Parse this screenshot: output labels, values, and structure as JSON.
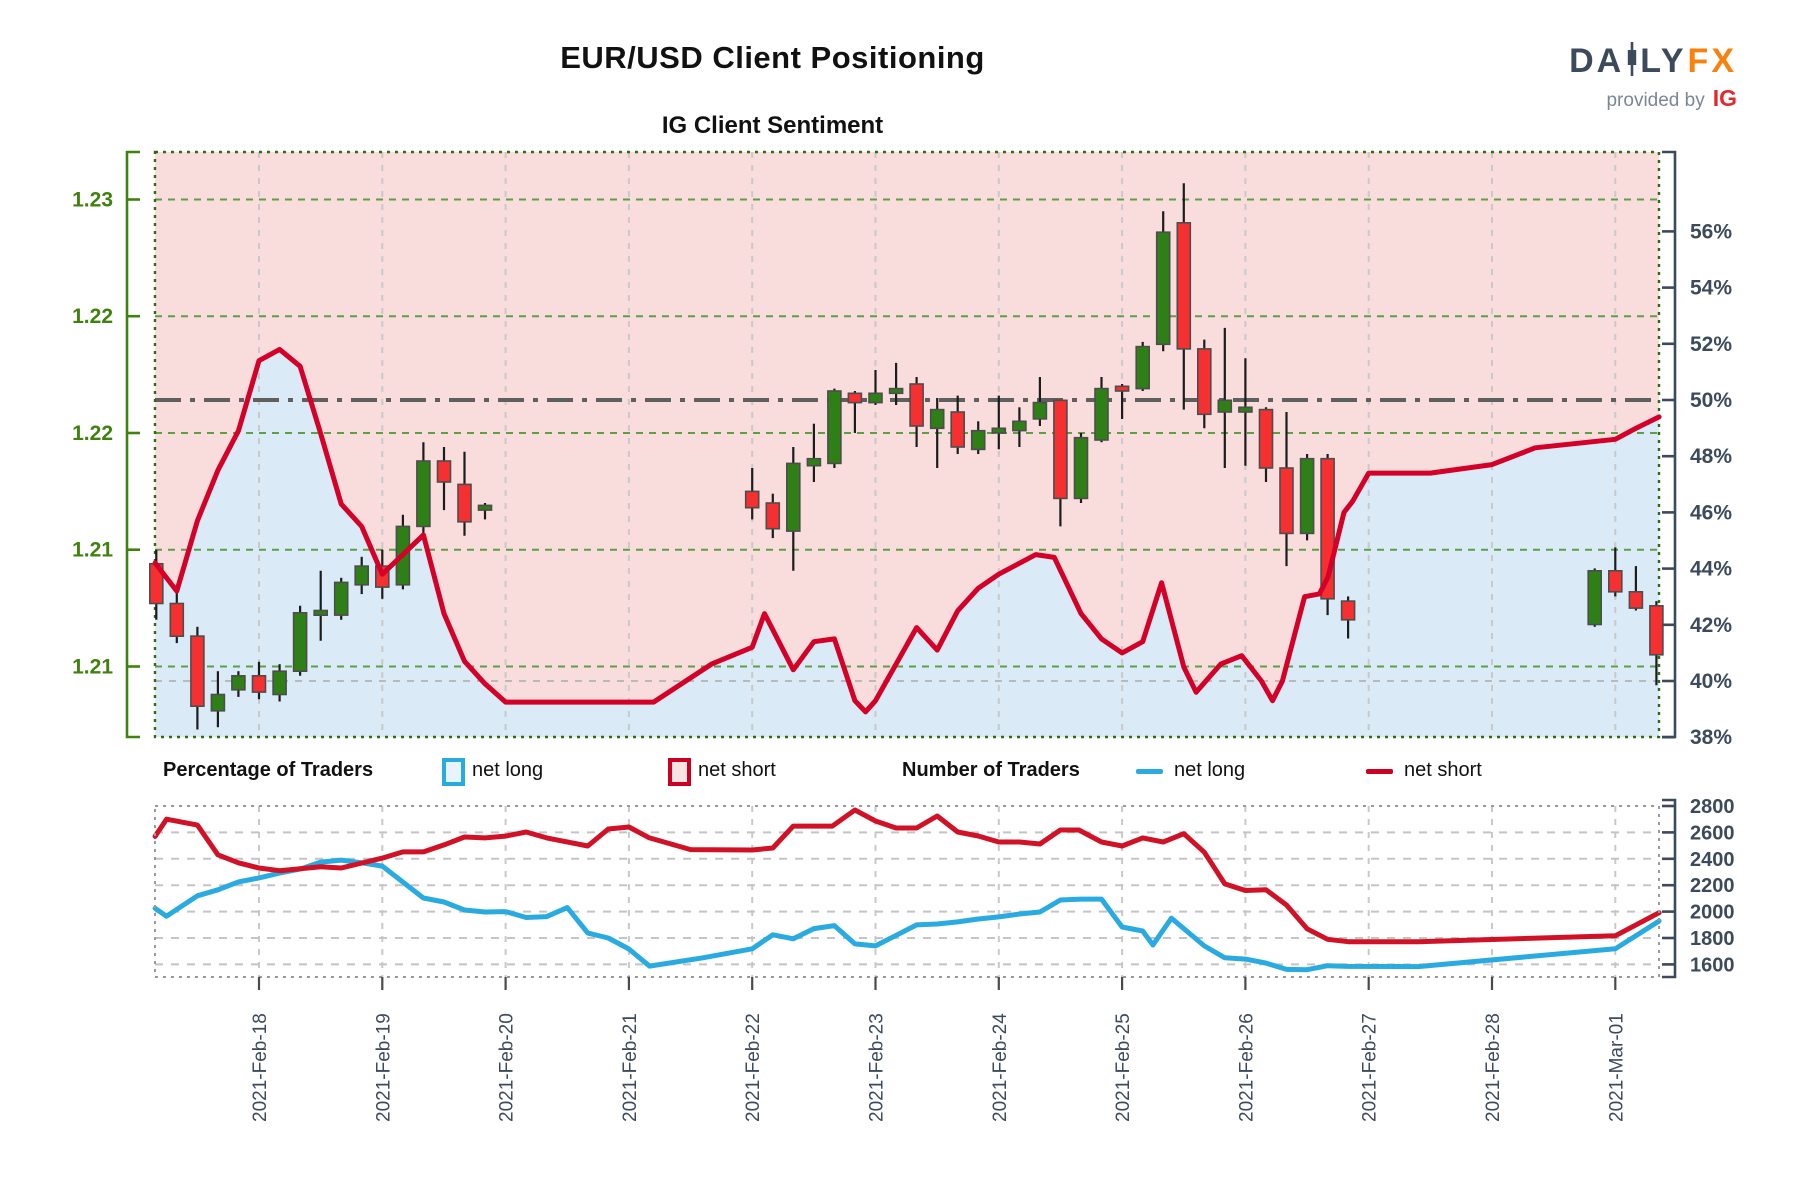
{
  "header": {
    "title": "EUR/USD Client Positioning",
    "subtitle": "IG Client Sentiment"
  },
  "logo": {
    "brand_prefix": "DA",
    "brand_mid": "LY",
    "brand_suffix": "FX",
    "tagline": "provided by",
    "tagline_brand": "IG",
    "brand_color": "#3d4a5c",
    "fx_color": "#f8820d",
    "ig_color": "#e02a2e"
  },
  "legend": {
    "pct_title": "Percentage of Traders",
    "num_title": "Number of Traders",
    "net_long": "net long",
    "net_short": "net short",
    "long_color": "#29abe2",
    "short_color": "#cc0022"
  },
  "colors": {
    "price_axis_green": "#41810f",
    "grid_green": "#5f9e47",
    "border_green": "#2f6b10",
    "slate": "#3d4a5c",
    "sentiment_red": "#d40028",
    "pink_fill": "#f9dcdc",
    "blue_fill": "#daeaf6",
    "candle_up": "#2e8016",
    "candle_down": "#f63030",
    "gray_grid": "#c9c9c9",
    "fifty_line": "#5f5f5f",
    "forty_line": "#b9b9b9",
    "bot_long": "#29abe2",
    "bot_short": "#d11226"
  },
  "x_axis": {
    "tick_labels": [
      "2021-Feb-18",
      "2021-Feb-19",
      "2021-Feb-20",
      "2021-Feb-21",
      "2021-Feb-22",
      "2021-Feb-23",
      "2021-Feb-24",
      "2021-Feb-25",
      "2021-Feb-26",
      "2021-Feb-27",
      "2021-Feb-28",
      "2021-Mar-01"
    ],
    "tick_t": [
      0,
      1,
      2,
      3,
      4,
      5,
      6,
      7,
      8,
      9,
      10,
      11
    ]
  },
  "chart_data": [
    {
      "type": "candlestick+line",
      "title": "IG Client Sentiment price panel",
      "price_axis": {
        "ticks": [
          1.23,
          1.225,
          1.22,
          1.215,
          1.21
        ],
        "tick_labels": [
          "1.23",
          "1.22",
          "1.22",
          "1.21",
          "1.21"
        ]
      },
      "pct_axis": {
        "ticks": [
          56,
          54,
          52,
          50,
          48,
          46,
          44,
          42,
          40,
          38
        ],
        "suffix": "%"
      },
      "reference_lines": {
        "fifty_pct": 50,
        "forty_pct": 40
      },
      "candles_format": [
        "t_days_from_2021-02-18",
        "open",
        "high",
        "low",
        "close"
      ],
      "candles": [
        [
          -0.833,
          1.2144,
          1.215,
          1.212,
          1.2127
        ],
        [
          -0.667,
          1.2127,
          1.2133,
          1.211,
          1.2113
        ],
        [
          -0.5,
          1.2113,
          1.2117,
          1.2073,
          1.2083
        ],
        [
          -0.333,
          1.2081,
          1.2098,
          1.2074,
          1.2088
        ],
        [
          -0.167,
          1.209,
          1.2098,
          1.2087,
          1.2096
        ],
        [
          0,
          1.2096,
          1.2102,
          1.2086,
          1.2089
        ],
        [
          0.167,
          1.2088,
          1.2101,
          1.2085,
          1.2098
        ],
        [
          0.333,
          1.2098,
          1.2126,
          1.2096,
          1.2123
        ],
        [
          0.5,
          1.2122,
          1.2141,
          1.2111,
          1.2124
        ],
        [
          0.667,
          1.2122,
          1.2138,
          1.212,
          1.2136
        ],
        [
          0.833,
          1.2135,
          1.2147,
          1.2131,
          1.2143
        ],
        [
          1.0,
          1.2143,
          1.215,
          1.2129,
          1.2134
        ],
        [
          1.167,
          1.2135,
          1.2165,
          1.2133,
          1.216
        ],
        [
          1.333,
          1.216,
          1.2196,
          1.2156,
          1.2188
        ],
        [
          1.5,
          1.2188,
          1.2194,
          1.2167,
          1.2179
        ],
        [
          1.667,
          1.2178,
          1.2192,
          1.2156,
          1.2162
        ],
        [
          1.833,
          1.2167,
          1.217,
          1.2163,
          1.2169
        ],
        [
          4.0,
          1.2175,
          1.2185,
          1.2163,
          1.2168
        ],
        [
          4.167,
          1.217,
          1.2174,
          1.2155,
          1.2159
        ],
        [
          4.333,
          1.2158,
          1.2194,
          1.2141,
          1.2187
        ],
        [
          4.5,
          1.2186,
          1.2204,
          1.2179,
          1.2189
        ],
        [
          4.667,
          1.2187,
          1.2219,
          1.2185,
          1.2218
        ],
        [
          4.833,
          1.2217,
          1.2218,
          1.22,
          1.2213
        ],
        [
          5.0,
          1.2213,
          1.2227,
          1.2212,
          1.2217
        ],
        [
          5.167,
          1.2217,
          1.223,
          1.2212,
          1.2219
        ],
        [
          5.333,
          1.2221,
          1.2224,
          1.2194,
          1.2203
        ],
        [
          5.5,
          1.2202,
          1.2215,
          1.2185,
          1.221
        ],
        [
          5.667,
          1.2209,
          1.2216,
          1.2191,
          1.2194
        ],
        [
          5.833,
          1.2193,
          1.2205,
          1.2191,
          1.2201
        ],
        [
          6.0,
          1.22,
          1.2216,
          1.2193,
          1.2202
        ],
        [
          6.167,
          1.2201,
          1.2211,
          1.2194,
          1.2205
        ],
        [
          6.333,
          1.2206,
          1.2224,
          1.2203,
          1.2213
        ],
        [
          6.5,
          1.2214,
          1.2214,
          1.216,
          1.2172
        ],
        [
          6.667,
          1.2172,
          1.22,
          1.217,
          1.2198
        ],
        [
          6.833,
          1.2197,
          1.2224,
          1.2196,
          1.2219
        ],
        [
          7.0,
          1.222,
          1.2221,
          1.2206,
          1.2218
        ],
        [
          7.167,
          1.2219,
          1.2239,
          1.2218,
          1.2237
        ],
        [
          7.333,
          1.2238,
          1.2295,
          1.2235,
          1.2286
        ],
        [
          7.5,
          1.229,
          1.2307,
          1.221,
          1.2236
        ],
        [
          7.667,
          1.2236,
          1.224,
          1.2202,
          1.2208
        ],
        [
          7.833,
          1.2209,
          1.2245,
          1.2185,
          1.2214
        ],
        [
          8.0,
          1.2209,
          1.2232,
          1.2186,
          1.2211
        ],
        [
          8.167,
          1.221,
          1.2211,
          1.2179,
          1.2185
        ],
        [
          8.333,
          1.2185,
          1.2209,
          1.2143,
          1.2157
        ],
        [
          8.5,
          1.2157,
          1.2191,
          1.2154,
          1.2189
        ],
        [
          8.667,
          1.2189,
          1.2191,
          1.2122,
          1.2129
        ],
        [
          8.833,
          1.2128,
          1.213,
          1.2112,
          1.212
        ],
        [
          10.833,
          1.2118,
          1.2142,
          1.2117,
          1.2141
        ],
        [
          11.0,
          1.2141,
          1.2151,
          1.213,
          1.2132
        ],
        [
          11.167,
          1.2132,
          1.2143,
          1.2124,
          1.2125
        ],
        [
          11.333,
          1.2126,
          1.2128,
          1.2092,
          1.2105
        ]
      ],
      "sentiment_net_short_pct": [
        [
          -0.843,
          44.2
        ],
        [
          -0.667,
          43.2
        ],
        [
          -0.5,
          45.7
        ],
        [
          -0.333,
          47.5
        ],
        [
          -0.167,
          48.9
        ],
        [
          0,
          51.4
        ],
        [
          0.167,
          51.8
        ],
        [
          0.333,
          51.2
        ],
        [
          0.5,
          48.8
        ],
        [
          0.667,
          46.3
        ],
        [
          0.833,
          45.5
        ],
        [
          1.0,
          43.8
        ],
        [
          1.167,
          44.5
        ],
        [
          1.333,
          45.2
        ],
        [
          1.5,
          42.4
        ],
        [
          1.667,
          40.7
        ],
        [
          1.833,
          39.9
        ],
        [
          2.0,
          39.25
        ],
        [
          3.2,
          39.25
        ],
        [
          3.67,
          40.6
        ],
        [
          4.0,
          41.2
        ],
        [
          4.1,
          42.4
        ],
        [
          4.333,
          40.4
        ],
        [
          4.5,
          41.4
        ],
        [
          4.667,
          41.5
        ],
        [
          4.833,
          39.3
        ],
        [
          4.92,
          38.9
        ],
        [
          5.0,
          39.3
        ],
        [
          5.333,
          41.9
        ],
        [
          5.5,
          41.1
        ],
        [
          5.667,
          42.5
        ],
        [
          5.833,
          43.3
        ],
        [
          6.0,
          43.8
        ],
        [
          6.3,
          44.5
        ],
        [
          6.45,
          44.4
        ],
        [
          6.667,
          42.4
        ],
        [
          6.833,
          41.5
        ],
        [
          7.0,
          41.0
        ],
        [
          7.167,
          41.4
        ],
        [
          7.32,
          43.5
        ],
        [
          7.5,
          40.5
        ],
        [
          7.6,
          39.6
        ],
        [
          7.8,
          40.6
        ],
        [
          7.97,
          40.9
        ],
        [
          8.13,
          40.0
        ],
        [
          8.22,
          39.3
        ],
        [
          8.3,
          40.0
        ],
        [
          8.48,
          43.0
        ],
        [
          8.6,
          43.1
        ],
        [
          8.67,
          43.7
        ],
        [
          8.8,
          46.0
        ],
        [
          8.87,
          46.4
        ],
        [
          9.0,
          47.4
        ],
        [
          9.5,
          47.4
        ],
        [
          10.0,
          47.7
        ],
        [
          10.35,
          48.3
        ],
        [
          11.0,
          48.6
        ],
        [
          11.17,
          49.0
        ],
        [
          11.355,
          49.4
        ]
      ]
    },
    {
      "type": "line",
      "title": "Number of Traders panel",
      "y_axis": {
        "ticks": [
          2800,
          2600,
          2400,
          2200,
          2000,
          1800,
          1600
        ]
      },
      "series": [
        {
          "name": "net long",
          "color_key": "bot_long",
          "points": [
            [
              -0.843,
              2025
            ],
            [
              -0.75,
              1965
            ],
            [
              -0.5,
              2120
            ],
            [
              -0.333,
              2165
            ],
            [
              -0.167,
              2225
            ],
            [
              0,
              2255
            ],
            [
              0.167,
              2292
            ],
            [
              0.333,
              2322
            ],
            [
              0.5,
              2375
            ],
            [
              0.667,
              2390
            ],
            [
              0.833,
              2370
            ],
            [
              1.0,
              2345
            ],
            [
              1.333,
              2103
            ],
            [
              1.5,
              2073
            ],
            [
              1.667,
              2012
            ],
            [
              1.833,
              1997
            ],
            [
              2.0,
              2000
            ],
            [
              2.167,
              1955
            ],
            [
              2.333,
              1962
            ],
            [
              2.5,
              2030
            ],
            [
              2.667,
              1837
            ],
            [
              2.833,
              1800
            ],
            [
              3.0,
              1717
            ],
            [
              3.167,
              1587
            ],
            [
              3.6,
              1650
            ],
            [
              4.0,
              1718
            ],
            [
              4.167,
              1824
            ],
            [
              4.333,
              1794
            ],
            [
              4.5,
              1871
            ],
            [
              4.667,
              1894
            ],
            [
              4.833,
              1755
            ],
            [
              5.0,
              1740
            ],
            [
              5.333,
              1899
            ],
            [
              5.5,
              1906
            ],
            [
              5.667,
              1922
            ],
            [
              5.833,
              1944
            ],
            [
              6.0,
              1960
            ],
            [
              6.167,
              1982
            ],
            [
              6.333,
              1997
            ],
            [
              6.5,
              2088
            ],
            [
              6.667,
              2095
            ],
            [
              6.833,
              2095
            ],
            [
              7.0,
              1883
            ],
            [
              7.167,
              1853
            ],
            [
              7.25,
              1747
            ],
            [
              7.4,
              1950
            ],
            [
              7.667,
              1740
            ],
            [
              7.833,
              1650
            ],
            [
              8.0,
              1640
            ],
            [
              8.167,
              1610
            ],
            [
              8.333,
              1562
            ],
            [
              8.5,
              1560
            ],
            [
              8.667,
              1590
            ],
            [
              8.833,
              1585
            ],
            [
              9.4,
              1583
            ],
            [
              11.0,
              1718
            ],
            [
              11.355,
              1929
            ]
          ]
        },
        {
          "name": "net short",
          "color_key": "bot_short",
          "points": [
            [
              -0.843,
              2570
            ],
            [
              -0.75,
              2700
            ],
            [
              -0.5,
              2655
            ],
            [
              -0.333,
              2430
            ],
            [
              -0.167,
              2370
            ],
            [
              0,
              2330
            ],
            [
              0.167,
              2310
            ],
            [
              0.333,
              2325
            ],
            [
              0.5,
              2340
            ],
            [
              0.667,
              2330
            ],
            [
              1.0,
              2405
            ],
            [
              1.167,
              2452
            ],
            [
              1.333,
              2452
            ],
            [
              1.5,
              2505
            ],
            [
              1.667,
              2565
            ],
            [
              1.833,
              2558
            ],
            [
              2.0,
              2572
            ],
            [
              2.167,
              2603
            ],
            [
              2.333,
              2558
            ],
            [
              2.667,
              2497
            ],
            [
              2.833,
              2626
            ],
            [
              3.0,
              2641
            ],
            [
              3.167,
              2558
            ],
            [
              3.5,
              2470
            ],
            [
              4.0,
              2467
            ],
            [
              4.167,
              2482
            ],
            [
              4.333,
              2648
            ],
            [
              4.65,
              2648
            ],
            [
              4.833,
              2770
            ],
            [
              5.0,
              2686
            ],
            [
              5.167,
              2633
            ],
            [
              5.333,
              2633
            ],
            [
              5.5,
              2724
            ],
            [
              5.667,
              2603
            ],
            [
              5.833,
              2573
            ],
            [
              6.0,
              2527
            ],
            [
              6.167,
              2527
            ],
            [
              6.333,
              2512
            ],
            [
              6.5,
              2618
            ],
            [
              6.65,
              2618
            ],
            [
              6.833,
              2527
            ],
            [
              7.0,
              2497
            ],
            [
              7.167,
              2558
            ],
            [
              7.333,
              2527
            ],
            [
              7.5,
              2590
            ],
            [
              7.667,
              2450
            ],
            [
              7.833,
              2210
            ],
            [
              8.0,
              2160
            ],
            [
              8.167,
              2165
            ],
            [
              8.333,
              2050
            ],
            [
              8.5,
              1870
            ],
            [
              8.667,
              1790
            ],
            [
              8.833,
              1772
            ],
            [
              9.4,
              1772
            ],
            [
              11.0,
              1817
            ],
            [
              11.355,
              1992
            ]
          ]
        }
      ]
    }
  ]
}
